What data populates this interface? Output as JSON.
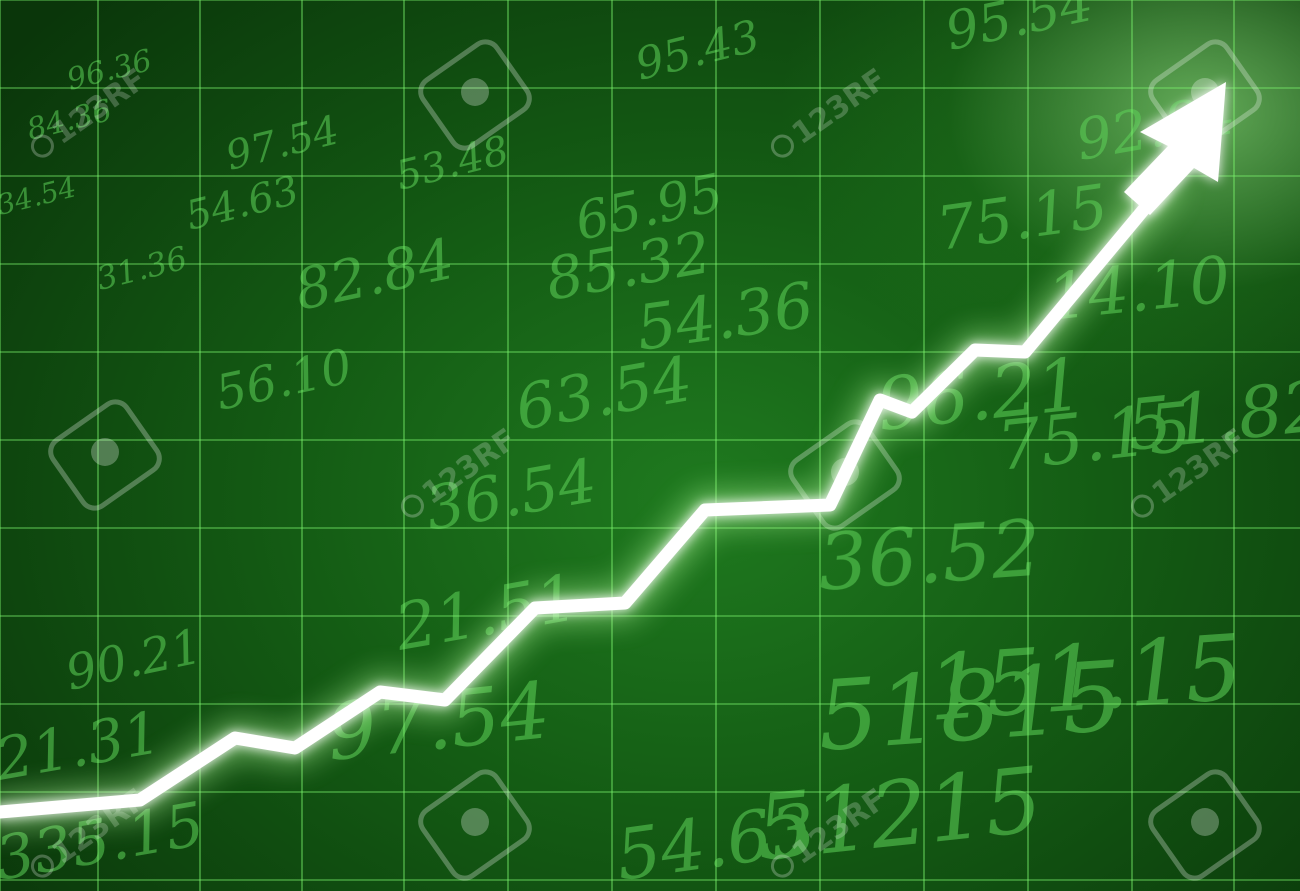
{
  "background_numbers": [
    "95.43",
    "95.54",
    "92.84",
    "96.36",
    "84.36",
    "97.54",
    "54.63",
    "82.84",
    "34.54",
    "53.48",
    "65.95",
    "75.15",
    "31.36",
    "85.32",
    "54.36",
    "14.10",
    "56.10",
    "63.54",
    "75.15",
    "51.82",
    "36.54",
    "96.21",
    "36.52",
    "90.21",
    "21.51",
    "21.31",
    "97.54",
    "335.15",
    "54.63",
    "51215",
    "51815",
    "151.15"
  ],
  "watermark": {
    "text": "123RF",
    "color": "#ffffff"
  },
  "colors": {
    "background": "#145c14",
    "grid": "#7cf56e",
    "arrow": "#ffffff",
    "glow": "#aaff9a"
  },
  "icons": {
    "watermark_logo": "camera-pin-icon",
    "trend": "up-arrow-icon"
  }
}
